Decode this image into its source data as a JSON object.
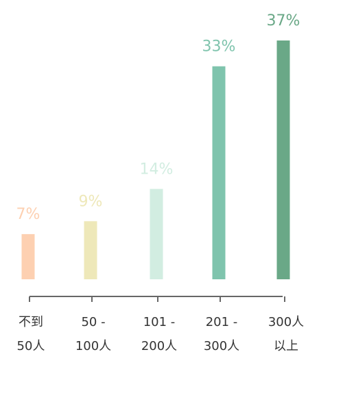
{
  "chart_data": {
    "type": "bar",
    "categories": [
      [
        "不到",
        "50人"
      ],
      [
        "50 -",
        "100人"
      ],
      [
        "101 -",
        "200人"
      ],
      [
        "201 -",
        "300人"
      ],
      [
        "300人",
        "以上"
      ]
    ],
    "values": [
      7,
      9,
      14,
      33,
      37
    ],
    "value_labels": [
      "7%",
      "9%",
      "14%",
      "33%",
      "37%"
    ],
    "colors": [
      "#fdd0b1",
      "#eee8b9",
      "#d2ede1",
      "#7fc4ad",
      "#6aa887"
    ]
  }
}
